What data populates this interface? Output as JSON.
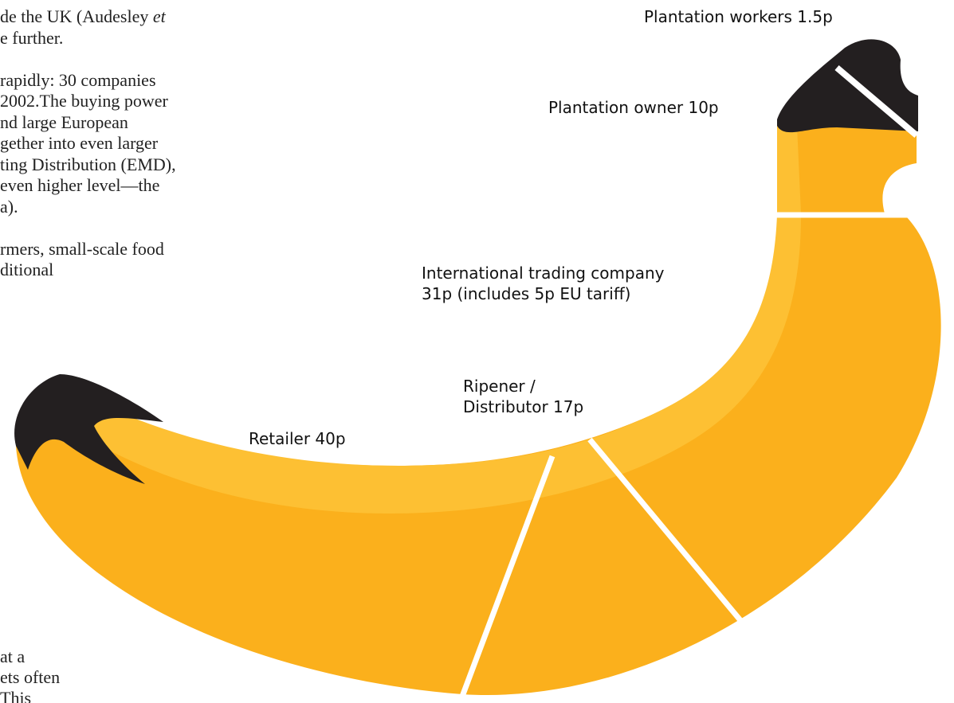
{
  "body_text": {
    "lines": [
      {
        "text": "de the UK (Audesley ",
        "italic": "et"
      },
      {
        "text": "e further."
      },
      {
        "text": ""
      },
      {
        "text": "rapidly: 30 companies"
      },
      {
        "text": "2002.The buying power"
      },
      {
        "text": "nd large European"
      },
      {
        "text": "gether into even larger"
      },
      {
        "text": "ting Distribution (EMD),"
      },
      {
        "text": "even higher level—the"
      },
      {
        "text": "a)."
      },
      {
        "text": ""
      },
      {
        "text": "rmers, small-scale food"
      },
      {
        "text": "ditional"
      }
    ],
    "bottom_lines": [
      "at a",
      "ets often",
      "This"
    ]
  },
  "labels": {
    "plantation_workers": "Plantation workers 1.5p",
    "plantation_owner": "Plantation owner 10p",
    "trading_company": [
      "International trading company",
      "31p (includes 5p EU tariff)"
    ],
    "ripener": [
      "Ripener /",
      "Distributor 17p"
    ],
    "retailer": "Retailer 40p"
  }
}
